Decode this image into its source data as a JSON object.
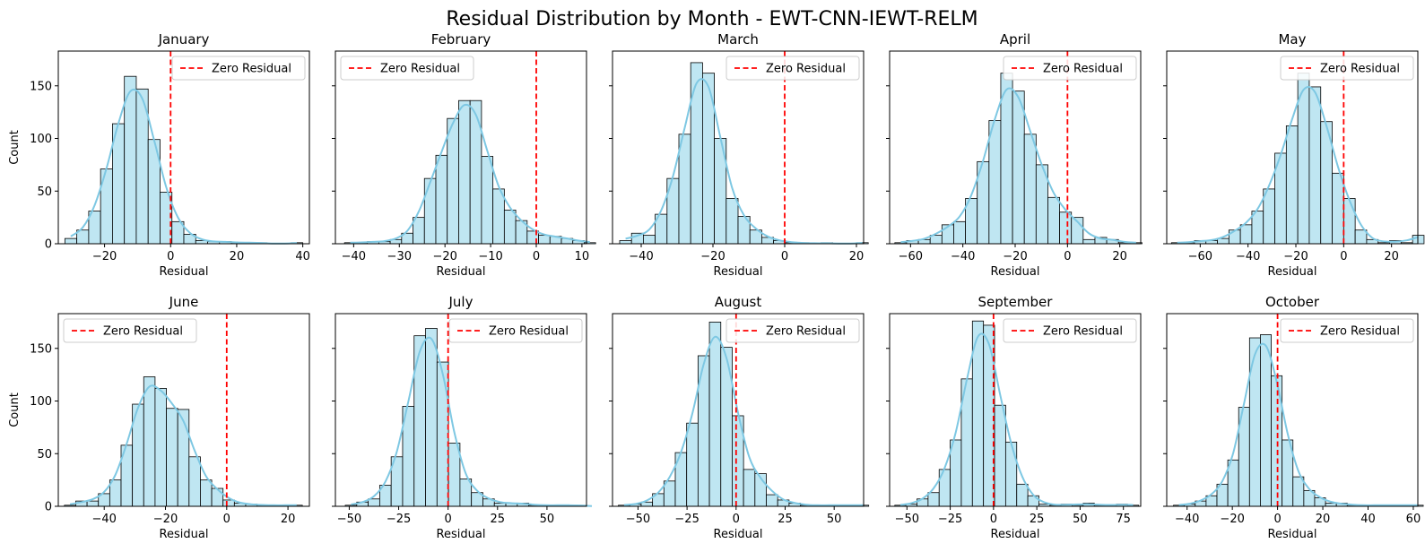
{
  "title": "Residual Distribution by Month - EWT-CNN-IEWT-RELM",
  "colors": {
    "bar_fill": "#bfe6f2",
    "bar_stroke": "#000000",
    "kde": "#7ec8e3",
    "zero_line": "#ff0000"
  },
  "legend_label": "Zero Residual",
  "xlabel": "Residual",
  "ylabel": "Count",
  "chart_data": [
    {
      "type": "bar",
      "title": "January",
      "legend": "top-right",
      "xlim": [
        -34,
        42
      ],
      "ylim": [
        0,
        183
      ],
      "xticks": [
        -20,
        0,
        20,
        40
      ],
      "yticks": [
        0,
        50,
        100,
        150
      ],
      "bin_start": -32,
      "bin_width": 3.6,
      "counts": [
        5,
        13,
        31,
        71,
        114,
        159,
        147,
        99,
        49,
        21,
        9,
        3,
        2,
        2,
        1,
        1,
        1,
        0,
        0,
        1
      ]
    },
    {
      "type": "bar",
      "title": "February",
      "legend": "top-left",
      "xlim": [
        -44,
        11
      ],
      "ylim": [
        0,
        183
      ],
      "xticks": [
        -40,
        -30,
        -20,
        -10,
        0,
        10
      ],
      "yticks": [
        0,
        50,
        100,
        150
      ],
      "bin_start": -42,
      "bin_width": 2.5,
      "counts": [
        1,
        1,
        2,
        2,
        4,
        10,
        25,
        62,
        84,
        119,
        136,
        136,
        83,
        52,
        32,
        22,
        12,
        8,
        7,
        5,
        3,
        1
      ]
    },
    {
      "type": "bar",
      "title": "March",
      "legend": "top-right",
      "xlim": [
        -48,
        22
      ],
      "ylim": [
        0,
        183
      ],
      "xticks": [
        -40,
        -20,
        0,
        20
      ],
      "yticks": [
        0,
        50,
        100,
        150
      ],
      "bin_start": -46,
      "bin_width": 3.3,
      "counts": [
        3,
        10,
        8,
        28,
        62,
        104,
        172,
        162,
        100,
        43,
        26,
        13,
        6,
        3,
        1,
        1,
        0,
        1,
        0,
        0,
        1
      ]
    },
    {
      "type": "bar",
      "title": "April",
      "legend": "top-right",
      "xlim": [
        -68,
        28
      ],
      "ylim": [
        0,
        183
      ],
      "xticks": [
        -60,
        -40,
        -20,
        0,
        20
      ],
      "yticks": [
        0,
        50,
        100,
        150
      ],
      "bin_start": -66,
      "bin_width": 4.5,
      "counts": [
        1,
        3,
        4,
        8,
        18,
        21,
        43,
        78,
        117,
        162,
        145,
        104,
        75,
        44,
        30,
        25,
        4,
        6,
        4,
        1,
        1
      ]
    },
    {
      "type": "bar",
      "title": "May",
      "legend": "top-right",
      "xlim": [
        -74,
        31
      ],
      "ylim": [
        0,
        183
      ],
      "xticks": [
        -60,
        -40,
        -20,
        0,
        20
      ],
      "yticks": [
        0,
        50,
        100,
        150
      ],
      "bin_start": -72,
      "bin_width": 4.8,
      "counts": [
        1,
        1,
        3,
        3,
        5,
        13,
        18,
        31,
        52,
        86,
        112,
        162,
        149,
        116,
        67,
        43,
        13,
        4,
        1,
        3,
        1,
        8
      ]
    },
    {
      "type": "bar",
      "title": "June",
      "legend": "top-left",
      "xlim": [
        -55,
        27
      ],
      "ylim": [
        0,
        183
      ],
      "xticks": [
        -40,
        -20,
        0,
        20
      ],
      "yticks": [
        0,
        50,
        100,
        150
      ],
      "bin_start": -53,
      "bin_width": 3.7,
      "counts": [
        1,
        5,
        5,
        12,
        25,
        58,
        97,
        123,
        112,
        93,
        92,
        47,
        25,
        17,
        6,
        3,
        2,
        1,
        1,
        1,
        1
      ]
    },
    {
      "type": "bar",
      "title": "July",
      "legend": "top-right",
      "xlim": [
        -57,
        70
      ],
      "ylim": [
        0,
        183
      ],
      "xticks": [
        -50,
        -25,
        0,
        25,
        50
      ],
      "yticks": [
        0,
        50,
        100,
        150
      ],
      "bin_start": -52,
      "bin_width": 5.8,
      "counts": [
        1,
        4,
        7,
        20,
        47,
        95,
        162,
        169,
        137,
        60,
        26,
        13,
        7,
        3,
        3,
        3,
        1,
        1,
        1,
        1,
        1,
        0
      ]
    },
    {
      "type": "bar",
      "title": "August",
      "legend": "top-right",
      "xlim": [
        -63,
        65
      ],
      "ylim": [
        0,
        183
      ],
      "xticks": [
        -50,
        -25,
        0,
        25,
        50
      ],
      "yticks": [
        0,
        50,
        100,
        150
      ],
      "bin_start": -60,
      "bin_width": 5.8,
      "counts": [
        1,
        2,
        4,
        12,
        24,
        51,
        79,
        143,
        175,
        151,
        86,
        35,
        31,
        11,
        6,
        3,
        1,
        1,
        1,
        1,
        1,
        1
      ]
    },
    {
      "type": "bar",
      "title": "September",
      "legend": "top-right",
      "xlim": [
        -60,
        85
      ],
      "ylim": [
        0,
        183
      ],
      "xticks": [
        -50,
        -25,
        0,
        25,
        50,
        75
      ],
      "yticks": [
        0,
        50,
        100,
        150
      ],
      "bin_start": -57,
      "bin_width": 6.4,
      "counts": [
        1,
        2,
        7,
        13,
        35,
        63,
        121,
        176,
        172,
        96,
        61,
        21,
        10,
        2,
        1,
        2,
        1,
        3,
        1,
        1,
        2,
        1
      ]
    },
    {
      "type": "bar",
      "title": "October",
      "legend": "top-right",
      "xlim": [
        -49,
        62
      ],
      "ylim": [
        0,
        183
      ],
      "xticks": [
        -40,
        -20,
        0,
        20,
        40,
        60
      ],
      "yticks": [
        0,
        50,
        100,
        150
      ],
      "bin_start": -46,
      "bin_width": 4.8,
      "counts": [
        1,
        2,
        5,
        10,
        21,
        44,
        94,
        160,
        163,
        124,
        63,
        28,
        15,
        8,
        3,
        3,
        1,
        1,
        1,
        1,
        1,
        1,
        1
      ]
    }
  ]
}
